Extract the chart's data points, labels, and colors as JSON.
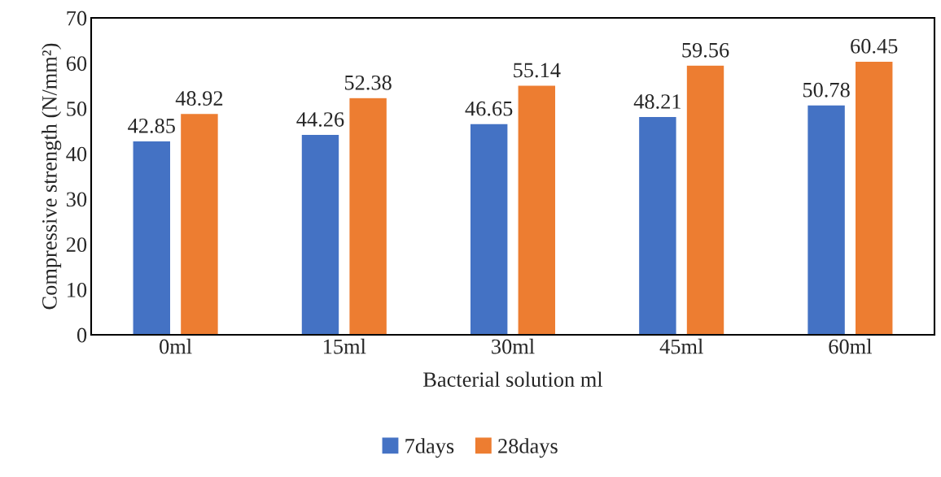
{
  "chart_data": {
    "type": "bar",
    "xlabel": "Bacterial solution ml",
    "ylabel": "Compressive strength (N/mm²)",
    "categories": [
      "0ml",
      "15ml",
      "30ml",
      "45ml",
      "60ml"
    ],
    "series": [
      {
        "name": "7days",
        "color": "#4472c4",
        "values": [
          42.85,
          44.26,
          46.65,
          48.21,
          50.78
        ]
      },
      {
        "name": "28days",
        "color": "#ed7d31",
        "values": [
          48.92,
          52.38,
          55.14,
          59.56,
          60.45
        ]
      }
    ],
    "ylim": [
      0,
      70
    ],
    "yticks": [
      0,
      10,
      20,
      30,
      40,
      50,
      60,
      70
    ],
    "grid": false,
    "legend": "bottom",
    "data_labels": true
  }
}
